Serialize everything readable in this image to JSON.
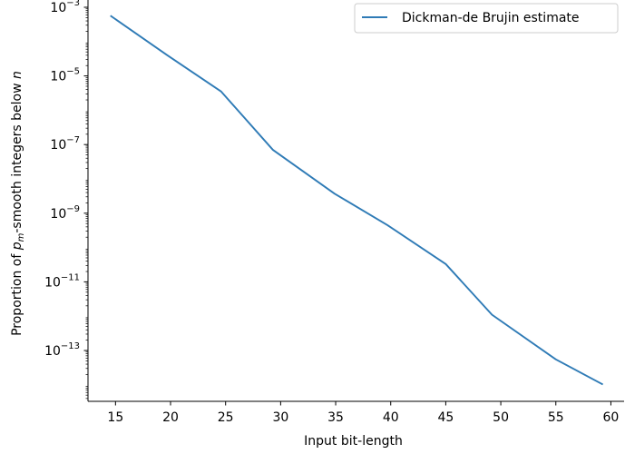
{
  "chart_data": {
    "type": "line",
    "xlabel": "Input bit-length",
    "ylabel": "Proportion of p_m-smooth integers below n",
    "ylabel_parts": {
      "before": "Proportion of ",
      "var": "p",
      "sub": "m",
      "after": "-smooth integers below ",
      "n": "n"
    },
    "log_y": true,
    "xlim": [
      12.5,
      61.2
    ],
    "ylim": [
      1e-15,
      0.001
    ],
    "x_ticks": [
      15,
      20,
      25,
      30,
      35,
      40,
      45,
      50,
      55,
      60
    ],
    "y_ticks": [
      {
        "value": 0.001,
        "base": "10",
        "exp": "−3"
      },
      {
        "value": 1e-05,
        "base": "10",
        "exp": "−5"
      },
      {
        "value": 1e-07,
        "base": "10",
        "exp": "−7"
      },
      {
        "value": 1e-09,
        "base": "10",
        "exp": "−9"
      },
      {
        "value": 1e-11,
        "base": "10",
        "exp": "−11"
      },
      {
        "value": 1e-13,
        "base": "10",
        "exp": "−13"
      }
    ],
    "legend_position": "top-right",
    "series": [
      {
        "name": "Dickman-de Brujin estimate",
        "color": "#2f7bb6",
        "x": [
          14.6,
          19.7,
          24.6,
          29.3,
          34.9,
          39.7,
          45.0,
          49.2,
          55.0,
          59.2
        ],
        "y": [
          0.00055,
          4e-05,
          3.5e-06,
          7e-08,
          3.7e-09,
          4.5e-10,
          3.3e-11,
          1.1e-12,
          5.5e-14,
          1.05e-14
        ]
      }
    ]
  }
}
